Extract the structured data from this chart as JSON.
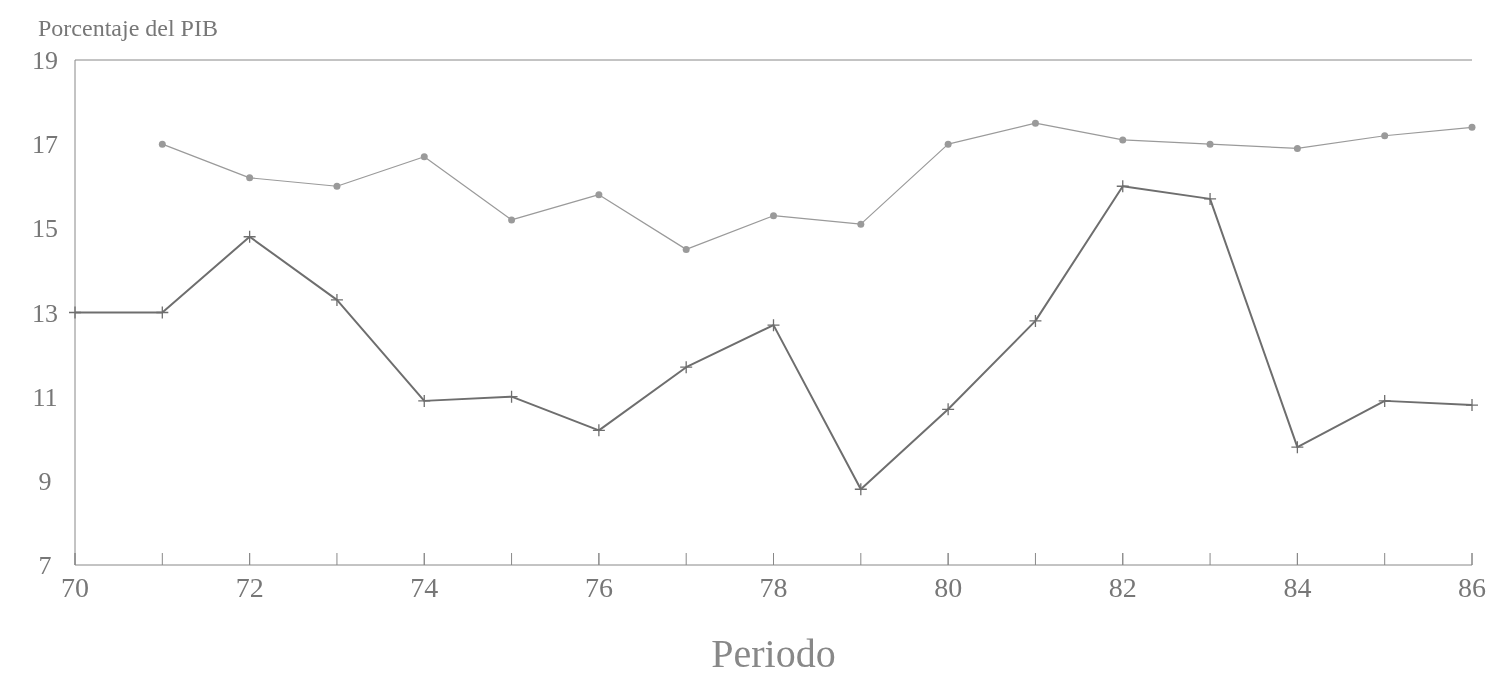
{
  "chart_data": {
    "type": "line",
    "ylabel": "Porcentaje del PIB",
    "xlabel": "Periodo",
    "xlim": [
      70,
      86
    ],
    "xticks": [
      70,
      72,
      74,
      76,
      78,
      80,
      82,
      84,
      86
    ],
    "ylim": [
      7,
      19
    ],
    "yticks": [
      7,
      9,
      11,
      13,
      15,
      17,
      19
    ],
    "series": [
      {
        "color": "#9a9a9a",
        "marker": "circle",
        "x": [
          71,
          72,
          73,
          74,
          75,
          76,
          77,
          78,
          79,
          80,
          81,
          82,
          83,
          84,
          85,
          86
        ],
        "values": [
          17.0,
          16.2,
          16.0,
          16.7,
          15.2,
          15.8,
          14.5,
          15.3,
          15.1,
          17.0,
          17.5,
          17.1,
          17.0,
          16.9,
          17.2,
          17.4
        ]
      },
      {
        "color": "#6e6e6e",
        "marker": "cross",
        "x": [
          70,
          71,
          72,
          73,
          74,
          75,
          76,
          77,
          78,
          79,
          80,
          81,
          82,
          83,
          84,
          85,
          86
        ],
        "values": [
          13.0,
          13.0,
          14.8,
          13.3,
          10.9,
          11.0,
          10.2,
          11.7,
          12.7,
          8.8,
          10.7,
          12.8,
          16.0,
          15.7,
          9.8,
          10.9,
          10.8
        ]
      }
    ],
    "grid": false
  }
}
